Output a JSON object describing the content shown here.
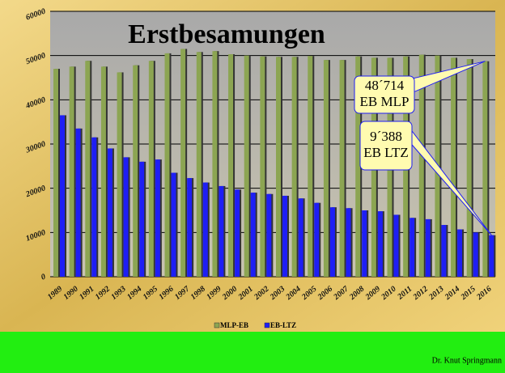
{
  "chart_data": {
    "type": "bar",
    "title": "Erstbesamungen",
    "categories": [
      "1989",
      "1990",
      "1991",
      "1992",
      "1993",
      "1994",
      "1995",
      "1996",
      "1997",
      "1998",
      "1999",
      "2000",
      "2001",
      "2002",
      "2003",
      "2004",
      "2005",
      "2006",
      "2007",
      "2008",
      "2009",
      "2010",
      "2011",
      "2012",
      "2013",
      "2014",
      "2015",
      "2016"
    ],
    "series": [
      {
        "name": "MLP-EB",
        "color": "#8ca552",
        "values": [
          47000,
          47500,
          48800,
          47500,
          46200,
          47800,
          48800,
          50500,
          51500,
          50800,
          51000,
          50300,
          50000,
          49800,
          49700,
          49700,
          49900,
          49000,
          49000,
          49800,
          49500,
          49500,
          49800,
          50200,
          50000,
          49500,
          49200,
          48714
        ]
      },
      {
        "name": "EB-LTZ",
        "color": "#1e1ef5",
        "values": [
          36500,
          33500,
          31500,
          29000,
          27000,
          26000,
          26500,
          23500,
          22300,
          21300,
          20500,
          19700,
          19000,
          18700,
          18300,
          17700,
          16700,
          15700,
          15500,
          15000,
          14800,
          14000,
          13300,
          13000,
          11700,
          10700,
          10000,
          9388
        ]
      }
    ],
    "ylim": [
      0,
      60000
    ],
    "yticks": [
      0,
      10000,
      20000,
      30000,
      40000,
      50000,
      60000
    ],
    "grid": true,
    "annotations": [
      {
        "lines": [
          "48´714",
          "EB MLP"
        ]
      },
      {
        "lines": [
          "9´388",
          "EB LTZ"
        ]
      }
    ],
    "footer": "Dr. Knut Springmann"
  }
}
